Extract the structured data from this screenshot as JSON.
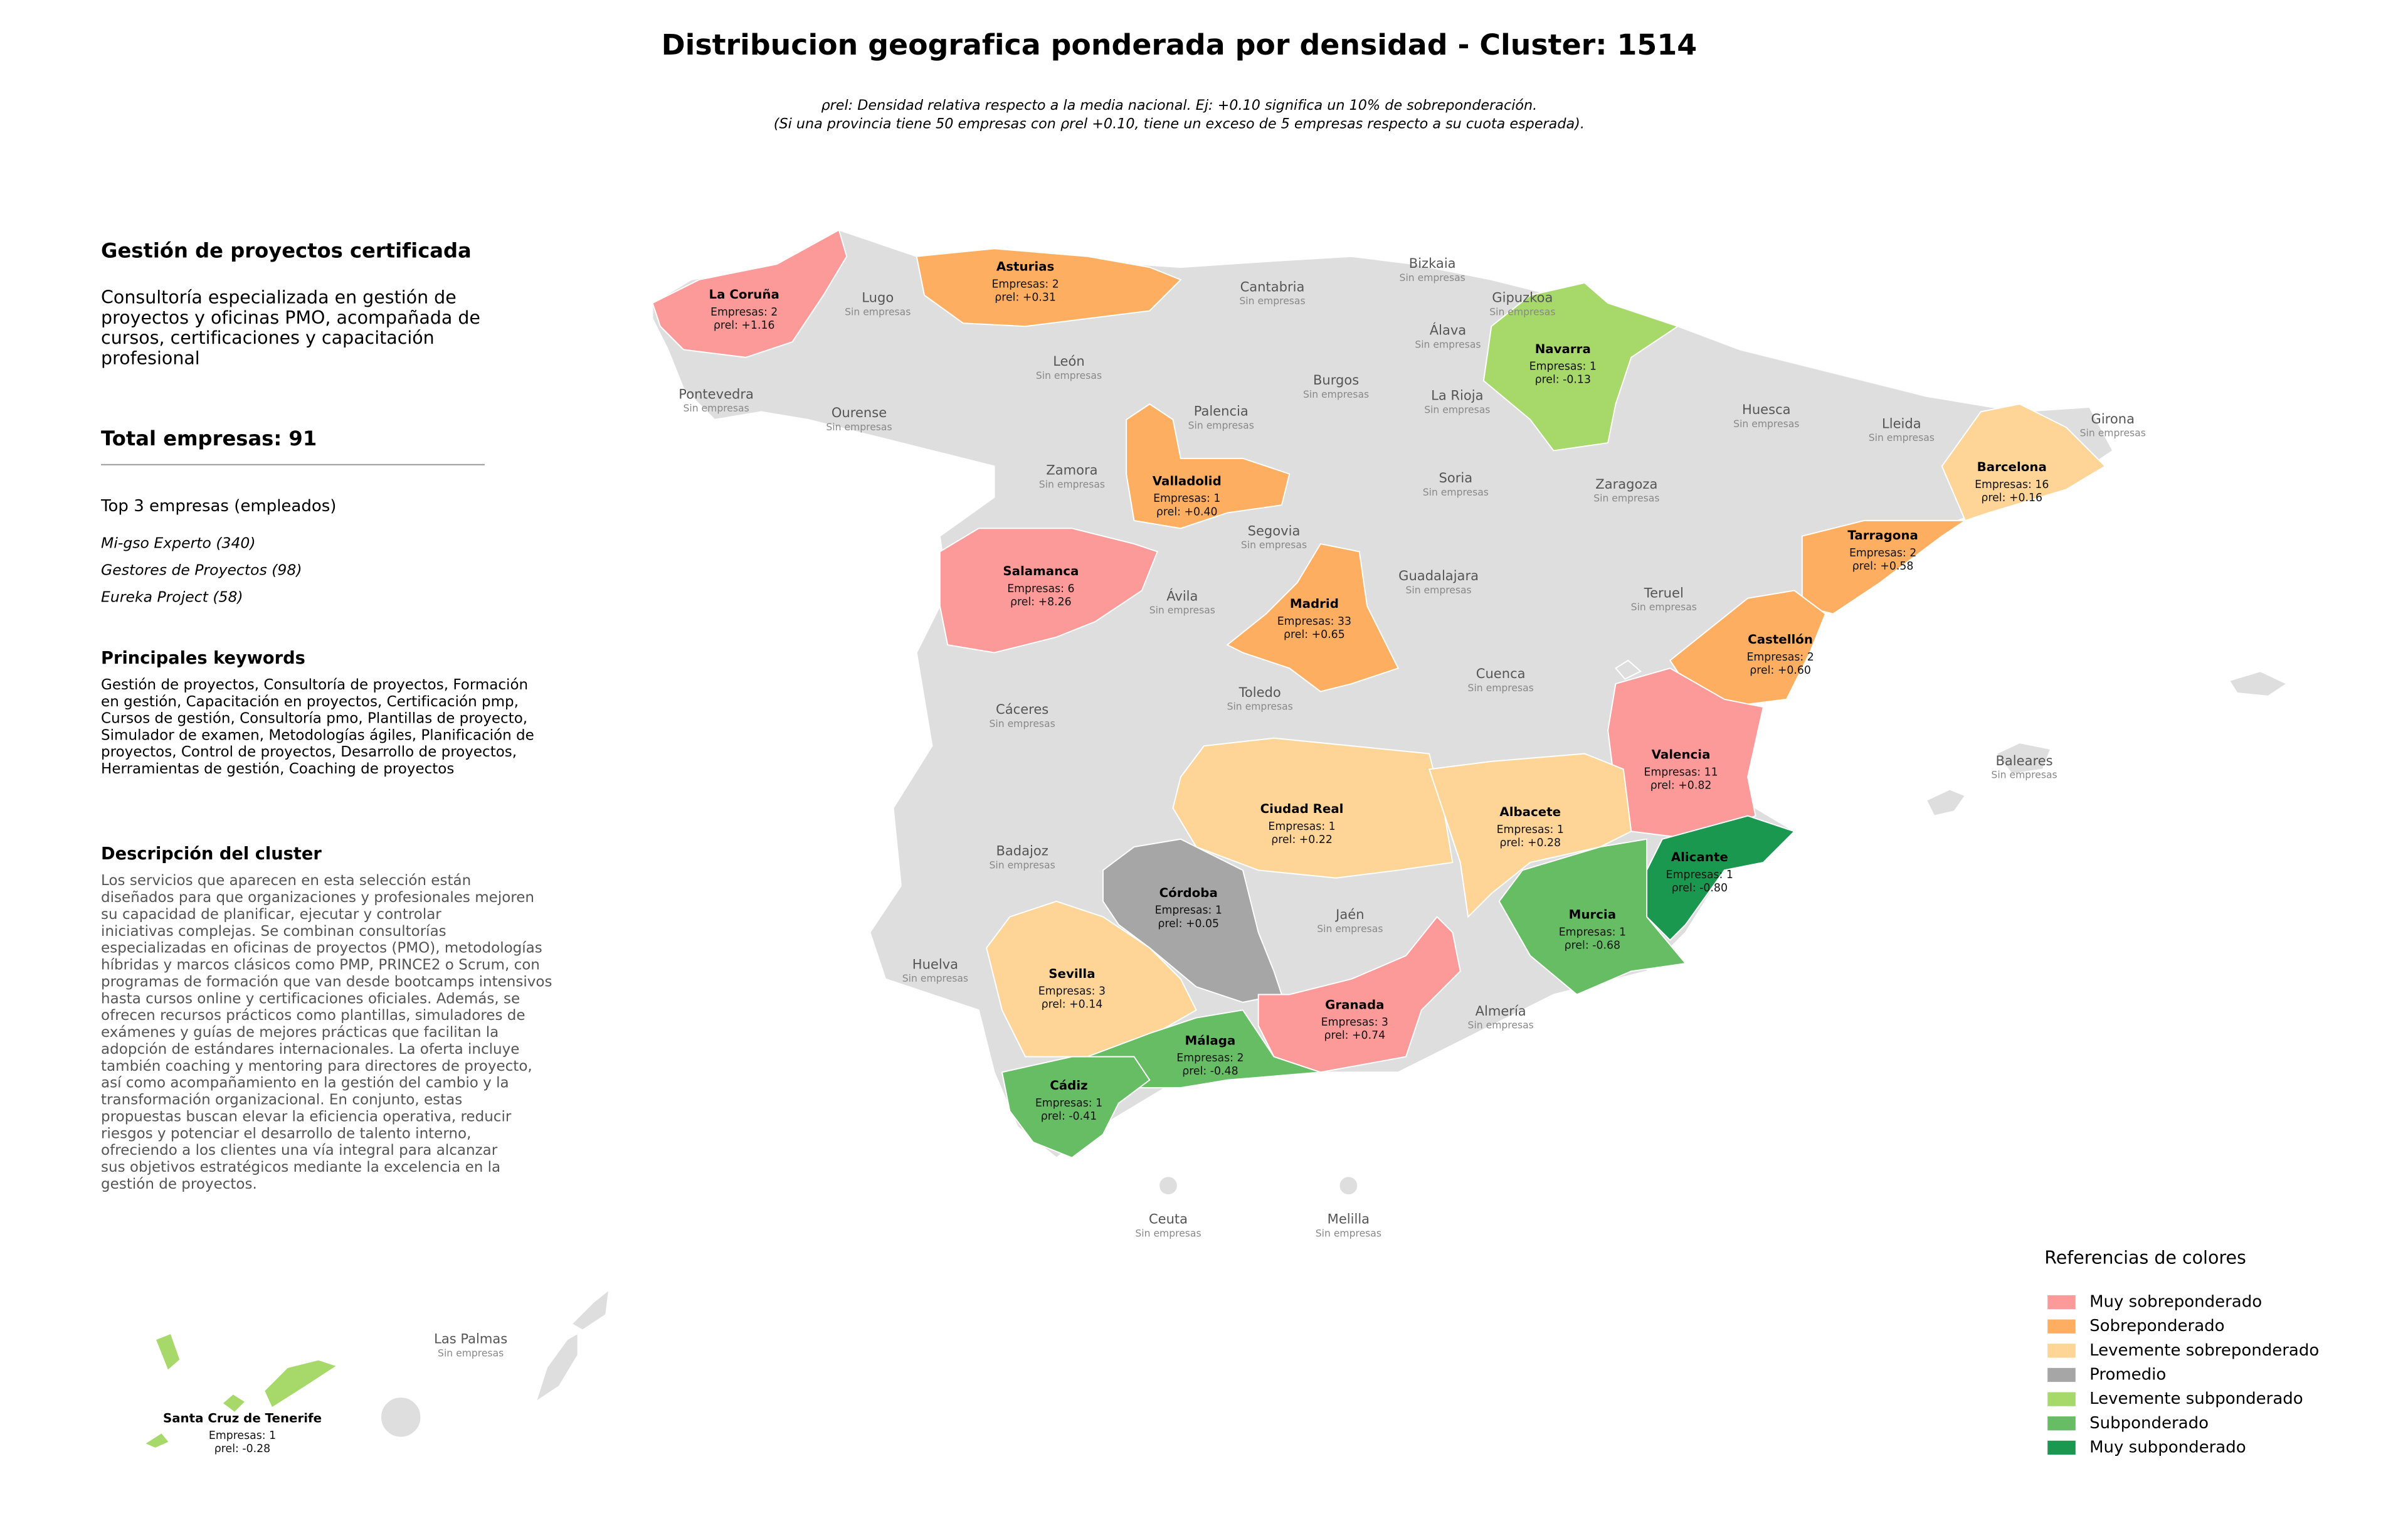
{
  "title": "Distribucion geografica ponderada por densidad - Cluster: 1514",
  "note": [
    "ρrel: Densidad relativa respecto a la media nacional. Ej: +0.10 significa un 10% de sobreponderación.",
    "(Si una provincia tiene 50 empresas con ρrel +0.10, tiene un exceso de 5 empresas respecto a su cuota esperada)."
  ],
  "panel": {
    "heading": "Gestión de proyectos certificada",
    "summary": [
      "Consultoría especializada en gestión de",
      "proyectos y oficinas PMO, acompañada de",
      "cursos, certificaciones y capacitación",
      "profesional"
    ],
    "total": "Total empresas: 91",
    "top_title": "Top 3 empresas (empleados)",
    "top": [
      "Mi-gso Experto (340)",
      "Gestores de Proyectos (98)",
      "Eureka Project (58)"
    ],
    "keywords_title": "Principales keywords",
    "keywords": [
      "Gestión de proyectos, Consultoría de proyectos, Formación",
      "en gestión, Capacitación en proyectos, Certificación pmp,",
      "Cursos de gestión, Consultoría pmo, Plantillas de proyecto,",
      "Simulador de examen, Metodologías ágiles, Planificación de",
      "proyectos, Control de proyectos, Desarrollo de proyectos,",
      "Herramientas de gestión, Coaching de proyectos"
    ],
    "description_title": "Descripción del cluster",
    "description": [
      "Los servicios que aparecen en esta selección están",
      "diseñados para que organizaciones y profesionales mejoren",
      "su capacidad de planificar, ejecutar y controlar",
      "iniciativas complejas. Se combinan consultorías",
      "especializadas en oficinas de proyectos (PMO), metodologías",
      "híbridas y marcos clásicos como PMP, PRINCE2 o Scrum, con",
      "programas de formación que van desde bootcamps intensivos",
      "hasta cursos online y certificaciones oficiales. Además, se",
      "ofrecen recursos prácticos como plantillas, simuladores de",
      "exámenes y guías de mejores prácticas que facilitan la",
      "adopción de estándares internacionales. La oferta incluye",
      "también coaching y mentoring para directores de proyecto,",
      "así como acompañamiento en la gestión del cambio y la",
      "transformación organizacional. En conjunto, estas",
      "propuestas buscan elevar la eficiencia operativa, reducir",
      "riesgos y potenciar el desarrollo de talento interno,",
      "ofreciendo a los clientes una vía integral para alcanzar",
      "sus objetivos estratégicos mediante la excelencia en la",
      "gestión de proyectos."
    ]
  },
  "provinces": [
    {
      "name": "La Coruña",
      "empresas": "Empresas: 2",
      "rho": "ρrel: +1.16",
      "color": "#fb9a99"
    },
    {
      "name": "Asturias",
      "empresas": "Empresas: 2",
      "rho": "ρrel: +0.31",
      "color": "#fdae61"
    },
    {
      "name": "Navarra",
      "empresas": "Empresas: 1",
      "rho": "ρrel: -0.13",
      "color": "#a6d96a"
    },
    {
      "name": "Valladolid",
      "empresas": "Empresas: 1",
      "rho": "ρrel: +0.40",
      "color": "#fdae61"
    },
    {
      "name": "Barcelona",
      "empresas": "Empresas: 16",
      "rho": "ρrel: +0.16",
      "color": "#fed597"
    },
    {
      "name": "Tarragona",
      "empresas": "Empresas: 2",
      "rho": "ρrel: +0.58",
      "color": "#fdae61"
    },
    {
      "name": "Salamanca",
      "empresas": "Empresas: 6",
      "rho": "ρrel: +8.26",
      "color": "#fb9a99"
    },
    {
      "name": "Madrid",
      "empresas": "Empresas: 33",
      "rho": "ρrel: +0.65",
      "color": "#fdae61"
    },
    {
      "name": "Castellón",
      "empresas": "Empresas: 2",
      "rho": "ρrel: +0.60",
      "color": "#fdae61"
    },
    {
      "name": "Valencia",
      "empresas": "Empresas: 11",
      "rho": "ρrel: +0.82",
      "color": "#fb9a99"
    },
    {
      "name": "Ciudad Real",
      "empresas": "Empresas: 1",
      "rho": "ρrel: +0.22",
      "color": "#fed597"
    },
    {
      "name": "Albacete",
      "empresas": "Empresas: 1",
      "rho": "ρrel: +0.28",
      "color": "#fed597"
    },
    {
      "name": "Alicante",
      "empresas": "Empresas: 1",
      "rho": "ρrel: -0.80",
      "color": "#1a9850"
    },
    {
      "name": "Córdoba",
      "empresas": "Empresas: 1",
      "rho": "ρrel: +0.05",
      "color": "#a6a6a6"
    },
    {
      "name": "Murcia",
      "empresas": "Empresas: 1",
      "rho": "ρrel: -0.68",
      "color": "#66bd63"
    },
    {
      "name": "Sevilla",
      "empresas": "Empresas: 3",
      "rho": "ρrel: +0.14",
      "color": "#fed597"
    },
    {
      "name": "Granada",
      "empresas": "Empresas: 3",
      "rho": "ρrel: +0.74",
      "color": "#fb9a99"
    },
    {
      "name": "Málaga",
      "empresas": "Empresas: 2",
      "rho": "ρrel: -0.48",
      "color": "#66bd63"
    },
    {
      "name": "Cádiz",
      "empresas": "Empresas: 1",
      "rho": "ρrel: -0.41",
      "color": "#66bd63"
    },
    {
      "name": "Santa Cruz de Tenerife",
      "empresas": "Empresas: 1",
      "rho": "ρrel: -0.28",
      "color": "#a6d96a"
    },
    {
      "name": "Lugo",
      "status": "Sin empresas"
    },
    {
      "name": "Pontevedra",
      "status": "Sin empresas"
    },
    {
      "name": "Ourense",
      "status": "Sin empresas"
    },
    {
      "name": "León",
      "status": "Sin empresas"
    },
    {
      "name": "Cantabria",
      "status": "Sin empresas"
    },
    {
      "name": "Bizkaia",
      "status": "Sin empresas"
    },
    {
      "name": "Gipuzkoa",
      "status": "Sin empresas"
    },
    {
      "name": "Álava",
      "status": "Sin empresas"
    },
    {
      "name": "Burgos",
      "status": "Sin empresas"
    },
    {
      "name": "La Rioja",
      "status": "Sin empresas"
    },
    {
      "name": "Palencia",
      "status": "Sin empresas"
    },
    {
      "name": "Zamora",
      "status": "Sin empresas"
    },
    {
      "name": "Huesca",
      "status": "Sin empresas"
    },
    {
      "name": "Lleida",
      "status": "Sin empresas"
    },
    {
      "name": "Girona",
      "status": "Sin empresas"
    },
    {
      "name": "Soria",
      "status": "Sin empresas"
    },
    {
      "name": "Zaragoza",
      "status": "Sin empresas"
    },
    {
      "name": "Segovia",
      "status": "Sin empresas"
    },
    {
      "name": "Guadalajara",
      "status": "Sin empresas"
    },
    {
      "name": "Ávila",
      "status": "Sin empresas"
    },
    {
      "name": "Teruel",
      "status": "Sin empresas"
    },
    {
      "name": "Cuenca",
      "status": "Sin empresas"
    },
    {
      "name": "Toledo",
      "status": "Sin empresas"
    },
    {
      "name": "Cáceres",
      "status": "Sin empresas"
    },
    {
      "name": "Badajoz",
      "status": "Sin empresas"
    },
    {
      "name": "Jaén",
      "status": "Sin empresas"
    },
    {
      "name": "Huelva",
      "status": "Sin empresas"
    },
    {
      "name": "Almería",
      "status": "Sin empresas"
    },
    {
      "name": "Baleares",
      "status": "Sin empresas"
    },
    {
      "name": "Ceuta",
      "status": "Sin empresas"
    },
    {
      "name": "Melilla",
      "status": "Sin empresas"
    },
    {
      "name": "Las Palmas",
      "status": "Sin empresas"
    }
  ],
  "legend": {
    "title": "Referencias de colores",
    "items": [
      {
        "name": "Muy sobreponderado",
        "color": "#fb9a99"
      },
      {
        "name": "Sobreponderado",
        "color": "#fdae61"
      },
      {
        "name": "Levemente sobreponderado",
        "color": "#fed597"
      },
      {
        "name": "Promedio",
        "color": "#a6a6a6"
      },
      {
        "name": "Levemente subponderado",
        "color": "#a6d96a"
      },
      {
        "name": "Subponderado",
        "color": "#66bd63"
      },
      {
        "name": "Muy subponderado",
        "color": "#1a9850"
      }
    ]
  }
}
